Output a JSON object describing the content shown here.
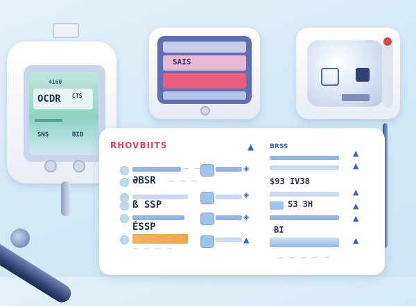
{
  "left_monitor": {
    "top_label": "4160",
    "readout_main": "OCDR",
    "readout_side": "CTS",
    "readout_lower": "SNS",
    "readout_lower_right": "BID"
  },
  "middle_monitor": {
    "readout": "SAIS"
  },
  "panel": {
    "title": "RHOVBIITS",
    "col2_header": "BRSS",
    "rows": [
      {
        "label": "ƏBSR",
        "value": "$93 IV38"
      },
      {
        "label": "ß SSP",
        "value": "S3 3H"
      },
      {
        "label": "ÉSSP",
        "value": "BI"
      }
    ]
  },
  "colors": {
    "accent": "#d9455f",
    "panel_bar": "#8fb6e6",
    "screen_teal": "#8fd3c2",
    "screen_violet": "#5f6fb3"
  }
}
